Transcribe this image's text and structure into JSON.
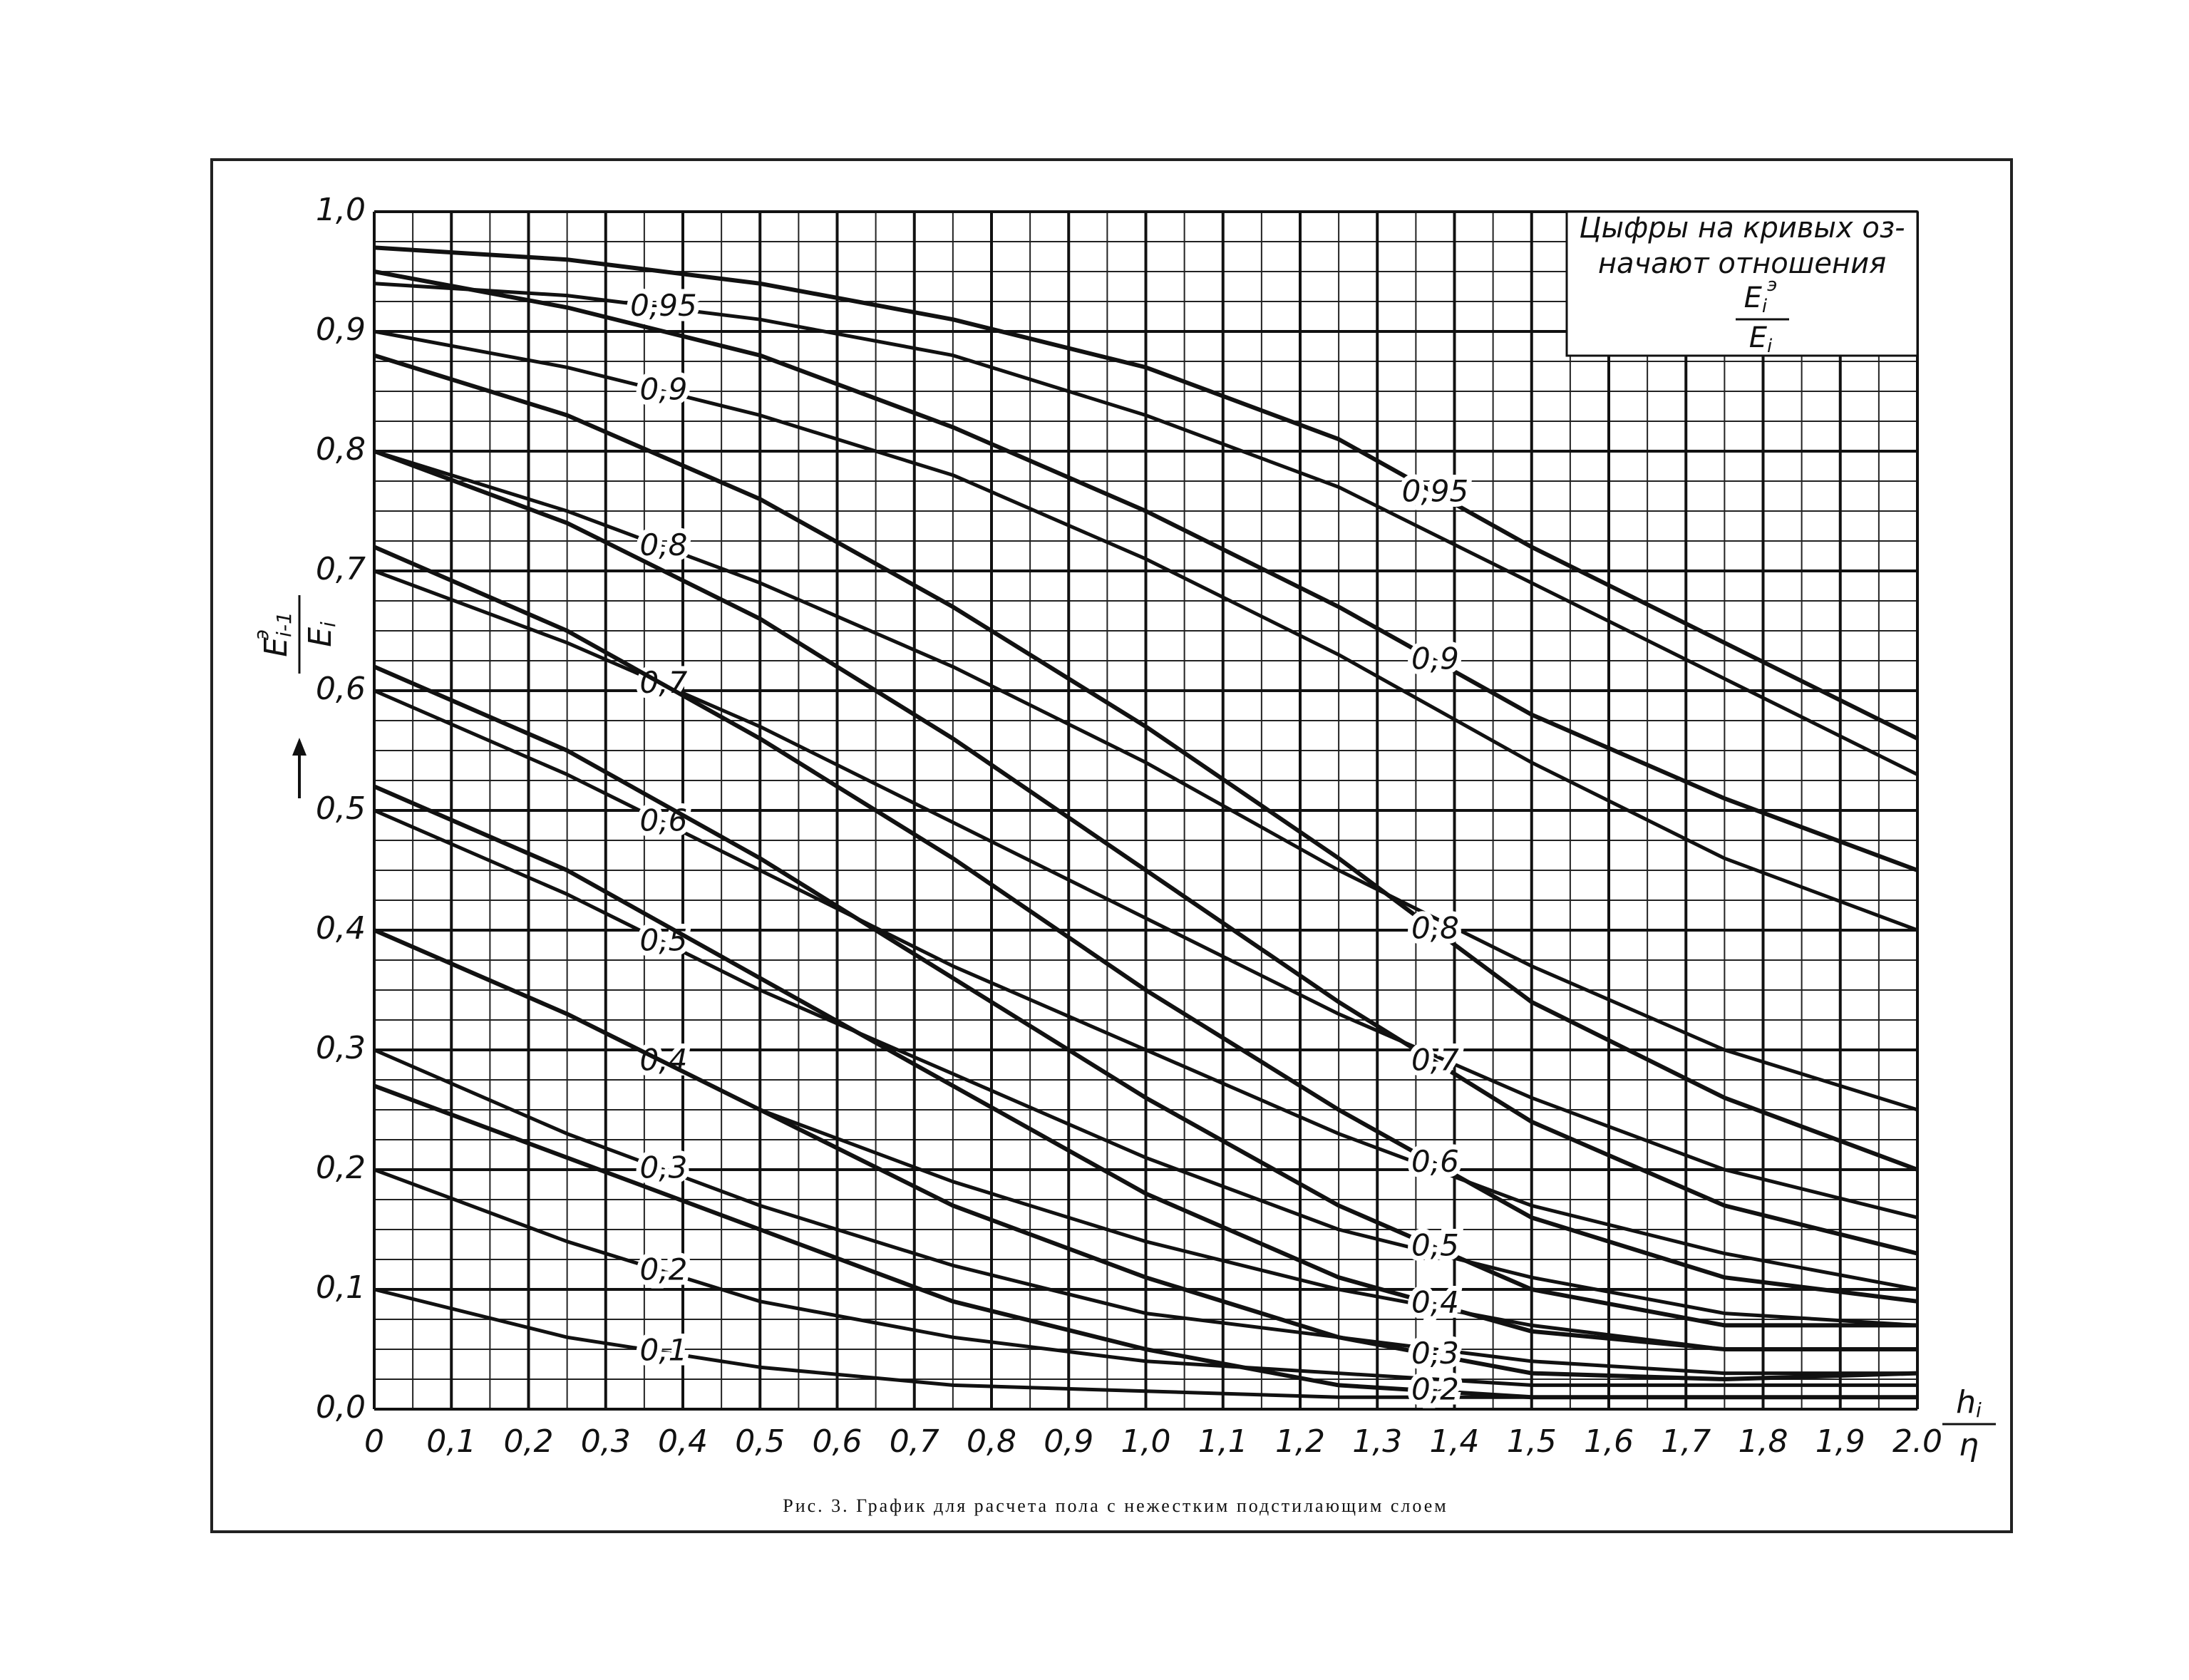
{
  "chart_data": {
    "type": "line",
    "title": "Рис. 3. График для расчета пола с нежестким подстилающим слоем",
    "note": [
      "Цыфры на кривых оз-",
      "начают отношения"
    ],
    "note_fraction": {
      "num": "E",
      "num_sub": "i",
      "num_sup": "э",
      "den": "E",
      "den_sub": "i"
    },
    "y_label": {
      "num": "E",
      "num_sub": "i-1",
      "num_sup": "э",
      "den": "E",
      "den_sub": "i"
    },
    "x_label": {
      "num": "h",
      "num_sub": "i",
      "den": "η"
    },
    "x": [
      0,
      0.25,
      0.5,
      0.75,
      1.0,
      1.25,
      1.5,
      1.75,
      2.0
    ],
    "xlim": [
      0,
      2.0
    ],
    "ylim": [
      0,
      1.0
    ],
    "grid": true,
    "color": "#111111",
    "xticks": [
      0,
      {
        "value": 0.1,
        "label": "0,1"
      },
      {
        "value": 0.2,
        "label": "0,2"
      },
      {
        "value": 0.3,
        "label": "0,3"
      },
      {
        "value": 0.4,
        "label": "0,4"
      },
      {
        "value": 0.5,
        "label": "0,5"
      },
      {
        "value": 0.6,
        "label": "0,6"
      },
      {
        "value": 0.7,
        "label": "0,7"
      },
      {
        "value": 0.8,
        "label": "0,8"
      },
      {
        "value": 0.9,
        "label": "0,9"
      },
      {
        "value": 1.0,
        "label": "1,0"
      },
      {
        "value": 1.1,
        "label": "1,1"
      },
      {
        "value": 1.2,
        "label": "1,2"
      },
      {
        "value": 1.3,
        "label": "1,3"
      },
      {
        "value": 1.4,
        "label": "1,4"
      },
      {
        "value": 1.5,
        "label": "1,5"
      },
      {
        "value": 1.6,
        "label": "1,6"
      },
      {
        "value": 1.7,
        "label": "1,7"
      },
      {
        "value": 1.8,
        "label": "1,8"
      },
      {
        "value": 1.9,
        "label": "1,9"
      },
      {
        "value": 2.0,
        "label": "2.0"
      }
    ],
    "yticks": [
      {
        "value": 0,
        "label": "0,0"
      },
      {
        "value": 0.1,
        "label": "0,1"
      },
      {
        "value": 0.2,
        "label": "0,2"
      },
      {
        "value": 0.3,
        "label": "0,3"
      },
      {
        "value": 0.4,
        "label": "0,4"
      },
      {
        "value": 0.5,
        "label": "0,5"
      },
      {
        "value": 0.6,
        "label": "0,6"
      },
      {
        "value": 0.7,
        "label": "0,7"
      },
      {
        "value": 0.8,
        "label": "0,8"
      },
      {
        "value": 0.9,
        "label": "0,9"
      },
      {
        "value": 1.0,
        "label": "1,0"
      }
    ],
    "series": [
      {
        "name": "0,95",
        "values": [
          0.94,
          0.93,
          0.91,
          0.88,
          0.83,
          0.77,
          0.69,
          0.61,
          0.53
        ]
      },
      {
        "name": "0,9",
        "values": [
          0.9,
          0.87,
          0.83,
          0.78,
          0.71,
          0.63,
          0.54,
          0.46,
          0.4
        ]
      },
      {
        "name": "0,8",
        "values": [
          0.8,
          0.75,
          0.69,
          0.62,
          0.54,
          0.45,
          0.37,
          0.3,
          0.25
        ]
      },
      {
        "name": "0,7",
        "values": [
          0.7,
          0.64,
          0.57,
          0.49,
          0.41,
          0.33,
          0.26,
          0.2,
          0.16
        ]
      },
      {
        "name": "0,6",
        "values": [
          0.6,
          0.53,
          0.45,
          0.37,
          0.3,
          0.23,
          0.17,
          0.13,
          0.1
        ]
      },
      {
        "name": "0,5",
        "values": [
          0.5,
          0.43,
          0.35,
          0.28,
          0.21,
          0.15,
          0.11,
          0.08,
          0.07
        ]
      },
      {
        "name": "0,4",
        "values": [
          0.4,
          0.33,
          0.25,
          0.19,
          0.14,
          0.1,
          0.07,
          0.05,
          0.05
        ]
      },
      {
        "name": "0,3",
        "values": [
          0.3,
          0.23,
          0.17,
          0.12,
          0.08,
          0.06,
          0.04,
          0.03,
          0.03
        ]
      },
      {
        "name": "0,2",
        "values": [
          0.2,
          0.14,
          0.09,
          0.06,
          0.04,
          0.03,
          0.02,
          0.02,
          0.02
        ]
      },
      {
        "name": "0,1",
        "values": [
          0.1,
          0.06,
          0.035,
          0.02,
          0.015,
          0.01,
          0.01,
          0.01,
          0.01
        ]
      },
      {
        "name": "0,95",
        "values": [
          0.97,
          0.96,
          0.94,
          0.91,
          0.87,
          0.81,
          0.72,
          0.64,
          0.56
        ]
      },
      {
        "name": "0,9",
        "values": [
          0.95,
          0.92,
          0.88,
          0.82,
          0.75,
          0.67,
          0.58,
          0.51,
          0.45
        ]
      },
      {
        "name": "0,8",
        "values": [
          0.88,
          0.83,
          0.76,
          0.67,
          0.57,
          0.46,
          0.34,
          0.26,
          0.2
        ]
      },
      {
        "name": "0,7",
        "values": [
          0.8,
          0.74,
          0.66,
          0.56,
          0.45,
          0.34,
          0.24,
          0.17,
          0.13
        ]
      },
      {
        "name": "0,6",
        "values": [
          0.72,
          0.65,
          0.56,
          0.46,
          0.35,
          0.25,
          0.16,
          0.11,
          0.09
        ]
      },
      {
        "name": "0,5",
        "values": [
          0.62,
          0.55,
          0.46,
          0.36,
          0.26,
          0.17,
          0.1,
          0.07,
          0.07
        ]
      },
      {
        "name": "0,4",
        "values": [
          0.52,
          0.45,
          0.36,
          0.27,
          0.18,
          0.11,
          0.065,
          0.05,
          0.05
        ]
      },
      {
        "name": "0,3",
        "values": [
          0.4,
          0.33,
          0.25,
          0.17,
          0.11,
          0.06,
          0.03,
          0.025,
          0.03
        ]
      },
      {
        "name": "0,2",
        "values": [
          0.27,
          0.21,
          0.15,
          0.09,
          0.05,
          0.02,
          0.01,
          0.01,
          0.01
        ]
      }
    ]
  }
}
